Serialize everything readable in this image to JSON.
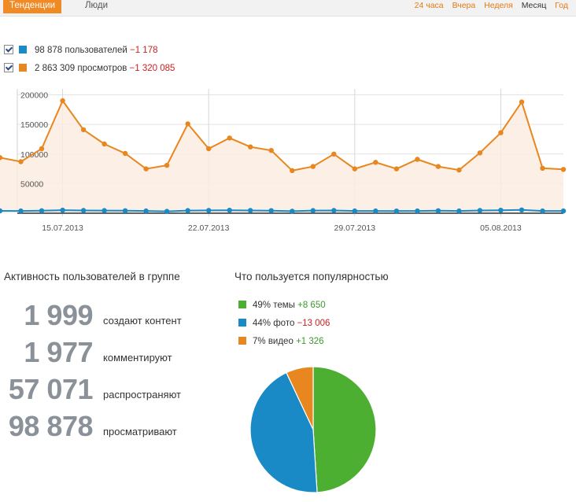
{
  "tabs": [
    {
      "label": "Тенденции",
      "active": true
    },
    {
      "label": "Люди",
      "active": false
    }
  ],
  "periods": [
    {
      "label": "24 часа",
      "selected": false
    },
    {
      "label": "Вчера",
      "selected": false
    },
    {
      "label": "Неделя",
      "selected": false
    },
    {
      "label": "Месяц",
      "selected": true
    },
    {
      "label": "Год",
      "selected": false
    }
  ],
  "legend": [
    {
      "checked": true,
      "color": "#1a8ac6",
      "text": "98 878 пользователей",
      "delta": "−1 178"
    },
    {
      "checked": true,
      "color": "#e8861f",
      "text": "2 863 309 просмотров",
      "delta": "−1 320 085"
    }
  ],
  "chart_data": [
    {
      "type": "line",
      "title": "",
      "xlabel": "",
      "ylabel": "",
      "x_tick_labels": [
        "15.07.2013",
        "22.07.2013",
        "29.07.2013",
        "05.08.2013"
      ],
      "y_tick_labels": [
        "50000",
        "100000",
        "150000",
        "200000"
      ],
      "ylim": [
        0,
        210000
      ],
      "grid": true,
      "series": [
        {
          "color": "#e8861f",
          "filled": true,
          "values": [
            94000,
            87000,
            109000,
            190000,
            141000,
            117000,
            101000,
            75000,
            81000,
            151000,
            109000,
            127000,
            112000,
            106000,
            72000,
            79000,
            100000,
            75000,
            86000,
            75000,
            91000,
            79000,
            73000,
            102000,
            136000,
            188000,
            76000,
            74000
          ]
        },
        {
          "color": "#1a8ac6",
          "filled": false,
          "values": [
            4000,
            3800,
            4300,
            5200,
            4600,
            4500,
            4200,
            3800,
            3200,
            4500,
            4800,
            5000,
            4600,
            4400,
            3500,
            4500,
            4600,
            3900,
            3900,
            3700,
            3900,
            4300,
            3800,
            4600,
            5000,
            5600,
            3800,
            3900
          ]
        }
      ]
    },
    {
      "type": "pie",
      "title": "Что пользуется популярностью",
      "slices": [
        {
          "label": "49% темы",
          "value": 49,
          "delta": "+8 650",
          "color": "#4daf32"
        },
        {
          "label": "44% фото",
          "value": 44,
          "delta": "−13 006",
          "color": "#1a8ac6"
        },
        {
          "label": "7% видео",
          "value": 7,
          "delta": "+1 326",
          "color": "#e8861f"
        }
      ]
    }
  ],
  "activity": {
    "title": "Активность пользователей в группе",
    "rows": [
      {
        "value": "1 999",
        "label": "создают контент"
      },
      {
        "value": "1 977",
        "label": "комментируют"
      },
      {
        "value": "57 071",
        "label": "распространяют"
      },
      {
        "value": "98 878",
        "label": "просматривают"
      }
    ]
  },
  "popular": {
    "title": "Что пользуется популярностью"
  }
}
